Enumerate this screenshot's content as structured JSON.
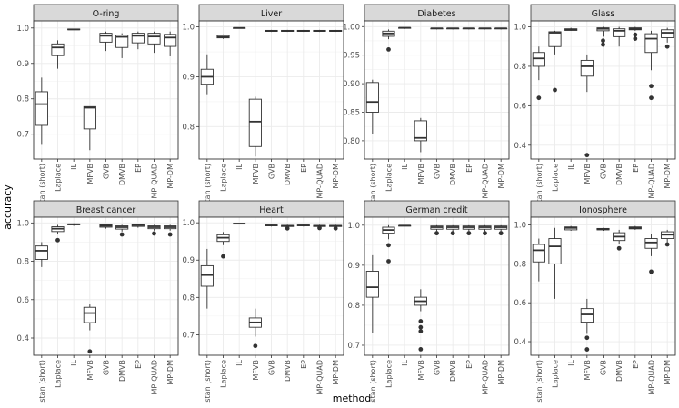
{
  "figure": {
    "xlabel": "method",
    "ylabel": "accuracy",
    "methods": [
      "stan (short)",
      "Laplace",
      "IL",
      "MFVB",
      "GVB",
      "DMVB",
      "EP",
      "MP-QUAD",
      "MP-DM"
    ]
  },
  "chart_data": [
    {
      "type": "box",
      "title": "O-ring",
      "ylim": [
        0.63,
        1.02
      ],
      "yticks": [
        0.7,
        0.8,
        0.9,
        1.0
      ],
      "ytick_labels": [
        "0.7",
        "0.8",
        "0.9",
        "1.0"
      ],
      "boxes": [
        {
          "method": "stan (short)",
          "min": 0.67,
          "q1": 0.725,
          "median": 0.785,
          "q3": 0.82,
          "max": 0.86,
          "outliers": []
        },
        {
          "method": "Laplace",
          "min": 0.885,
          "q1": 0.922,
          "median": 0.945,
          "q3": 0.955,
          "max": 0.965,
          "outliers": []
        },
        {
          "method": "IL",
          "min": 0.995,
          "q1": 0.995,
          "median": 0.996,
          "q3": 0.997,
          "max": 0.997,
          "outliers": []
        },
        {
          "method": "MFVB",
          "min": 0.655,
          "q1": 0.715,
          "median": 0.775,
          "q3": 0.778,
          "max": 0.778,
          "outliers": []
        },
        {
          "method": "GVB",
          "min": 0.935,
          "q1": 0.96,
          "median": 0.978,
          "q3": 0.985,
          "max": 0.99,
          "outliers": []
        },
        {
          "method": "DMVB",
          "min": 0.915,
          "q1": 0.945,
          "median": 0.975,
          "q3": 0.98,
          "max": 0.985,
          "outliers": []
        },
        {
          "method": "EP",
          "min": 0.94,
          "q1": 0.958,
          "median": 0.978,
          "q3": 0.985,
          "max": 0.99,
          "outliers": []
        },
        {
          "method": "MP-QUAD",
          "min": 0.93,
          "q1": 0.955,
          "median": 0.976,
          "q3": 0.985,
          "max": 0.99,
          "outliers": []
        },
        {
          "method": "MP-DM",
          "min": 0.92,
          "q1": 0.948,
          "median": 0.973,
          "q3": 0.982,
          "max": 0.99,
          "outliers": []
        }
      ]
    },
    {
      "type": "box",
      "title": "Liver",
      "ylim": [
        0.735,
        1.012
      ],
      "yticks": [
        0.8,
        0.9,
        1.0
      ],
      "ytick_labels": [
        "0.8",
        "0.9",
        "1.0"
      ],
      "boxes": [
        {
          "method": "stan (short)",
          "min": 0.865,
          "q1": 0.885,
          "median": 0.9,
          "q3": 0.915,
          "max": 0.945,
          "outliers": []
        },
        {
          "method": "Laplace",
          "min": 0.976,
          "q1": 0.978,
          "median": 0.98,
          "q3": 0.983,
          "max": 0.985,
          "outliers": []
        },
        {
          "method": "IL",
          "min": 0.997,
          "q1": 0.997,
          "median": 0.998,
          "q3": 0.998,
          "max": 0.999,
          "outliers": []
        },
        {
          "method": "MFVB",
          "min": 0.74,
          "q1": 0.76,
          "median": 0.81,
          "q3": 0.855,
          "max": 0.86,
          "outliers": []
        },
        {
          "method": "GVB",
          "min": 0.99,
          "q1": 0.991,
          "median": 0.992,
          "q3": 0.993,
          "max": 0.994,
          "outliers": []
        },
        {
          "method": "DMVB",
          "min": 0.99,
          "q1": 0.991,
          "median": 0.992,
          "q3": 0.993,
          "max": 0.994,
          "outliers": []
        },
        {
          "method": "EP",
          "min": 0.99,
          "q1": 0.991,
          "median": 0.992,
          "q3": 0.993,
          "max": 0.994,
          "outliers": []
        },
        {
          "method": "MP-QUAD",
          "min": 0.99,
          "q1": 0.991,
          "median": 0.992,
          "q3": 0.993,
          "max": 0.994,
          "outliers": []
        },
        {
          "method": "MP-DM",
          "min": 0.99,
          "q1": 0.991,
          "median": 0.992,
          "q3": 0.993,
          "max": 0.994,
          "outliers": []
        }
      ]
    },
    {
      "type": "box",
      "title": "Diabetes",
      "ylim": [
        0.768,
        1.01
      ],
      "yticks": [
        0.8,
        0.85,
        0.9,
        0.95,
        1.0
      ],
      "ytick_labels": [
        "0.80",
        "0.85",
        "0.90",
        "0.95",
        "1.00"
      ],
      "boxes": [
        {
          "method": "stan (short)",
          "min": 0.812,
          "q1": 0.85,
          "median": 0.868,
          "q3": 0.902,
          "max": 0.907,
          "outliers": []
        },
        {
          "method": "Laplace",
          "min": 0.978,
          "q1": 0.983,
          "median": 0.988,
          "q3": 0.992,
          "max": 0.995,
          "outliers": [
            0.96
          ]
        },
        {
          "method": "IL",
          "min": 0.996,
          "q1": 0.997,
          "median": 0.998,
          "q3": 0.998,
          "max": 0.999,
          "outliers": []
        },
        {
          "method": "MFVB",
          "min": 0.78,
          "q1": 0.8,
          "median": 0.805,
          "q3": 0.835,
          "max": 0.84,
          "outliers": []
        },
        {
          "method": "GVB",
          "min": 0.995,
          "q1": 0.996,
          "median": 0.997,
          "q3": 0.997,
          "max": 0.998,
          "outliers": []
        },
        {
          "method": "DMVB",
          "min": 0.995,
          "q1": 0.996,
          "median": 0.997,
          "q3": 0.997,
          "max": 0.998,
          "outliers": []
        },
        {
          "method": "EP",
          "min": 0.995,
          "q1": 0.996,
          "median": 0.997,
          "q3": 0.997,
          "max": 0.998,
          "outliers": []
        },
        {
          "method": "MP-QUAD",
          "min": 0.995,
          "q1": 0.996,
          "median": 0.997,
          "q3": 0.997,
          "max": 0.998,
          "outliers": []
        },
        {
          "method": "MP-DM",
          "min": 0.995,
          "q1": 0.996,
          "median": 0.997,
          "q3": 0.997,
          "max": 0.998,
          "outliers": []
        }
      ]
    },
    {
      "type": "box",
      "title": "Glass",
      "ylim": [
        0.33,
        1.03
      ],
      "yticks": [
        0.4,
        0.6,
        0.8,
        1.0
      ],
      "ytick_labels": [
        "0.4",
        "0.6",
        "0.8",
        "1.0"
      ],
      "boxes": [
        {
          "method": "stan (short)",
          "min": 0.73,
          "q1": 0.8,
          "median": 0.84,
          "q3": 0.87,
          "max": 0.9,
          "outliers": [
            0.64
          ]
        },
        {
          "method": "Laplace",
          "min": 0.86,
          "q1": 0.9,
          "median": 0.97,
          "q3": 0.975,
          "max": 0.98,
          "outliers": [
            0.68
          ]
        },
        {
          "method": "IL",
          "min": 0.98,
          "q1": 0.982,
          "median": 0.985,
          "q3": 0.99,
          "max": 0.995,
          "outliers": []
        },
        {
          "method": "MFVB",
          "min": 0.67,
          "q1": 0.75,
          "median": 0.8,
          "q3": 0.83,
          "max": 0.86,
          "outliers": [
            0.35
          ]
        },
        {
          "method": "GVB",
          "min": 0.95,
          "q1": 0.98,
          "median": 0.99,
          "q3": 0.995,
          "max": 1.0,
          "outliers": [
            0.93,
            0.91
          ]
        },
        {
          "method": "DMVB",
          "min": 0.9,
          "q1": 0.95,
          "median": 0.98,
          "q3": 0.99,
          "max": 1.0,
          "outliers": []
        },
        {
          "method": "EP",
          "min": 0.98,
          "q1": 0.985,
          "median": 0.99,
          "q3": 0.995,
          "max": 1.0,
          "outliers": [
            0.96,
            0.94
          ]
        },
        {
          "method": "MP-QUAD",
          "min": 0.78,
          "q1": 0.87,
          "median": 0.94,
          "q3": 0.965,
          "max": 0.98,
          "outliers": [
            0.7,
            0.64
          ]
        },
        {
          "method": "MP-DM",
          "min": 0.92,
          "q1": 0.945,
          "median": 0.97,
          "q3": 0.985,
          "max": 0.995,
          "outliers": [
            0.9
          ]
        }
      ]
    },
    {
      "type": "box",
      "title": "Breast cancer",
      "ylim": [
        0.31,
        1.03
      ],
      "yticks": [
        0.4,
        0.6,
        0.8,
        1.0
      ],
      "ytick_labels": [
        "0.4",
        "0.6",
        "0.8",
        "1.0"
      ],
      "boxes": [
        {
          "method": "stan (short)",
          "min": 0.77,
          "q1": 0.81,
          "median": 0.855,
          "q3": 0.88,
          "max": 0.9,
          "outliers": []
        },
        {
          "method": "Laplace",
          "min": 0.94,
          "q1": 0.955,
          "median": 0.97,
          "q3": 0.98,
          "max": 0.99,
          "outliers": [
            0.91
          ]
        },
        {
          "method": "IL",
          "min": 0.985,
          "q1": 0.99,
          "median": 0.993,
          "q3": 0.995,
          "max": 0.998,
          "outliers": []
        },
        {
          "method": "MFVB",
          "min": 0.44,
          "q1": 0.48,
          "median": 0.53,
          "q3": 0.56,
          "max": 0.575,
          "outliers": [
            0.33
          ]
        },
        {
          "method": "GVB",
          "min": 0.97,
          "q1": 0.978,
          "median": 0.985,
          "q3": 0.99,
          "max": 0.995,
          "outliers": []
        },
        {
          "method": "DMVB",
          "min": 0.955,
          "q1": 0.968,
          "median": 0.978,
          "q3": 0.985,
          "max": 0.99,
          "outliers": [
            0.94
          ]
        },
        {
          "method": "EP",
          "min": 0.975,
          "q1": 0.982,
          "median": 0.988,
          "q3": 0.992,
          "max": 0.996,
          "outliers": []
        },
        {
          "method": "MP-QUAD",
          "min": 0.96,
          "q1": 0.97,
          "median": 0.978,
          "q3": 0.985,
          "max": 0.99,
          "outliers": [
            0.945
          ]
        },
        {
          "method": "MP-DM",
          "min": 0.96,
          "q1": 0.97,
          "median": 0.978,
          "q3": 0.985,
          "max": 0.99,
          "outliers": [
            0.94
          ]
        }
      ]
    },
    {
      "type": "box",
      "title": "Heart",
      "ylim": [
        0.645,
        1.015
      ],
      "yticks": [
        0.7,
        0.8,
        0.9,
        1.0
      ],
      "ytick_labels": [
        "0.7",
        "0.8",
        "0.9",
        "1.0"
      ],
      "boxes": [
        {
          "method": "stan (short)",
          "min": 0.77,
          "q1": 0.83,
          "median": 0.86,
          "q3": 0.885,
          "max": 0.93,
          "outliers": []
        },
        {
          "method": "Laplace",
          "min": 0.94,
          "q1": 0.95,
          "median": 0.96,
          "q3": 0.968,
          "max": 0.975,
          "outliers": [
            0.91
          ]
        },
        {
          "method": "IL",
          "min": 0.996,
          "q1": 0.997,
          "median": 0.998,
          "q3": 0.998,
          "max": 0.999,
          "outliers": []
        },
        {
          "method": "MFVB",
          "min": 0.695,
          "q1": 0.72,
          "median": 0.733,
          "q3": 0.745,
          "max": 0.77,
          "outliers": [
            0.67
          ]
        },
        {
          "method": "GVB",
          "min": 0.99,
          "q1": 0.992,
          "median": 0.993,
          "q3": 0.994,
          "max": 0.995,
          "outliers": []
        },
        {
          "method": "DMVB",
          "min": 0.985,
          "q1": 0.99,
          "median": 0.992,
          "q3": 0.993,
          "max": 0.995,
          "outliers": [
            0.985
          ]
        },
        {
          "method": "EP",
          "min": 0.99,
          "q1": 0.992,
          "median": 0.993,
          "q3": 0.994,
          "max": 0.995,
          "outliers": []
        },
        {
          "method": "MP-QUAD",
          "min": 0.985,
          "q1": 0.99,
          "median": 0.992,
          "q3": 0.993,
          "max": 0.995,
          "outliers": [
            0.986
          ]
        },
        {
          "method": "MP-DM",
          "min": 0.985,
          "q1": 0.99,
          "median": 0.992,
          "q3": 0.993,
          "max": 0.995,
          "outliers": [
            0.985
          ]
        }
      ]
    },
    {
      "type": "box",
      "title": "German credit",
      "ylim": [
        0.675,
        1.02
      ],
      "yticks": [
        0.7,
        0.8,
        0.9,
        1.0
      ],
      "ytick_labels": [
        "0.7",
        "0.8",
        "0.9",
        "1.0"
      ],
      "boxes": [
        {
          "method": "stan (short)",
          "min": 0.73,
          "q1": 0.82,
          "median": 0.845,
          "q3": 0.885,
          "max": 0.925,
          "outliers": []
        },
        {
          "method": "Laplace",
          "min": 0.965,
          "q1": 0.98,
          "median": 0.988,
          "q3": 0.995,
          "max": 1.0,
          "outliers": [
            0.95,
            0.91
          ]
        },
        {
          "method": "IL",
          "min": 0.997,
          "q1": 0.998,
          "median": 0.999,
          "q3": 0.999,
          "max": 1.0,
          "outliers": []
        },
        {
          "method": "MFVB",
          "min": 0.785,
          "q1": 0.8,
          "median": 0.81,
          "q3": 0.82,
          "max": 0.84,
          "outliers": [
            0.76,
            0.745,
            0.735,
            0.69
          ]
        },
        {
          "method": "GVB",
          "min": 0.985,
          "q1": 0.99,
          "median": 0.995,
          "q3": 0.998,
          "max": 1.0,
          "outliers": [
            0.98
          ]
        },
        {
          "method": "DMVB",
          "min": 0.985,
          "q1": 0.99,
          "median": 0.995,
          "q3": 0.998,
          "max": 1.0,
          "outliers": [
            0.98
          ]
        },
        {
          "method": "EP",
          "min": 0.985,
          "q1": 0.99,
          "median": 0.995,
          "q3": 0.998,
          "max": 1.0,
          "outliers": [
            0.98
          ]
        },
        {
          "method": "MP-QUAD",
          "min": 0.985,
          "q1": 0.99,
          "median": 0.995,
          "q3": 0.998,
          "max": 1.0,
          "outliers": [
            0.98
          ]
        },
        {
          "method": "MP-DM",
          "min": 0.985,
          "q1": 0.99,
          "median": 0.995,
          "q3": 0.998,
          "max": 1.0,
          "outliers": [
            0.98
          ]
        }
      ]
    },
    {
      "type": "box",
      "title": "Ionosphere",
      "ylim": [
        0.33,
        1.04
      ],
      "yticks": [
        0.4,
        0.6,
        0.8,
        1.0
      ],
      "ytick_labels": [
        "0.4",
        "0.6",
        "0.8",
        "1.0"
      ],
      "boxes": [
        {
          "method": "stan (short)",
          "min": 0.71,
          "q1": 0.81,
          "median": 0.87,
          "q3": 0.9,
          "max": 0.93,
          "outliers": []
        },
        {
          "method": "Laplace",
          "min": 0.62,
          "q1": 0.8,
          "median": 0.89,
          "q3": 0.93,
          "max": 0.985,
          "outliers": []
        },
        {
          "method": "IL",
          "min": 0.97,
          "q1": 0.975,
          "median": 0.985,
          "q3": 0.99,
          "max": 0.995,
          "outliers": []
        },
        {
          "method": "MFVB",
          "min": 0.44,
          "q1": 0.5,
          "median": 0.54,
          "q3": 0.57,
          "max": 0.62,
          "outliers": [
            0.42,
            0.36
          ]
        },
        {
          "method": "GVB",
          "min": 0.97,
          "q1": 0.975,
          "median": 0.978,
          "q3": 0.982,
          "max": 0.985,
          "outliers": []
        },
        {
          "method": "DMVB",
          "min": 0.9,
          "q1": 0.92,
          "median": 0.94,
          "q3": 0.96,
          "max": 0.975,
          "outliers": [
            0.88
          ]
        },
        {
          "method": "EP",
          "min": 0.975,
          "q1": 0.98,
          "median": 0.985,
          "q3": 0.99,
          "max": 0.995,
          "outliers": []
        },
        {
          "method": "MP-QUAD",
          "min": 0.84,
          "q1": 0.88,
          "median": 0.91,
          "q3": 0.93,
          "max": 0.955,
          "outliers": [
            0.76
          ]
        },
        {
          "method": "MP-DM",
          "min": 0.91,
          "q1": 0.93,
          "median": 0.95,
          "q3": 0.965,
          "max": 0.975,
          "outliers": [
            0.9
          ]
        }
      ]
    }
  ]
}
